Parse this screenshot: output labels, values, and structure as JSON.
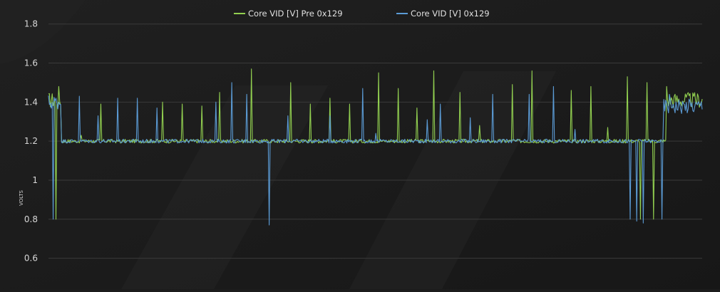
{
  "chart_data": {
    "type": "line",
    "title": "",
    "xlabel": "",
    "ylabel": "VOLTS",
    "ylim": [
      0.5,
      1.85
    ],
    "yticks": [
      {
        "value": 1.8,
        "label": "1.8"
      },
      {
        "value": 1.6,
        "label": "1.6"
      },
      {
        "value": 1.4,
        "label": "1.4"
      },
      {
        "value": 1.2,
        "label": "1.2"
      },
      {
        "value": 1.0,
        "label": "1"
      },
      {
        "value": 0.8,
        "label": "0.8"
      },
      {
        "value": 0.6,
        "label": "0.6"
      }
    ],
    "grid": true,
    "legend": "top-center",
    "n_samples": 700,
    "series": [
      {
        "name": "Core VID [V] Pre 0x129",
        "color": "#92d050",
        "baseline": 1.2,
        "noise": 0.01,
        "start_segment": {
          "end": 0.02,
          "value": 1.41,
          "noise": 0.04
        },
        "end_segment": {
          "start": 0.945,
          "value": 1.41,
          "noise": 0.04
        },
        "spikes": [
          {
            "x": 0.012,
            "y": 0.8
          },
          {
            "x": 0.016,
            "y": 1.48
          },
          {
            "x": 0.05,
            "y": 1.23
          },
          {
            "x": 0.08,
            "y": 1.39
          },
          {
            "x": 0.11,
            "y": 1.19
          },
          {
            "x": 0.175,
            "y": 1.4
          },
          {
            "x": 0.205,
            "y": 1.39
          },
          {
            "x": 0.235,
            "y": 1.38
          },
          {
            "x": 0.262,
            "y": 1.45
          },
          {
            "x": 0.31,
            "y": 1.57
          },
          {
            "x": 0.37,
            "y": 1.5
          },
          {
            "x": 0.4,
            "y": 1.39
          },
          {
            "x": 0.43,
            "y": 1.42
          },
          {
            "x": 0.46,
            "y": 1.39
          },
          {
            "x": 0.505,
            "y": 1.55
          },
          {
            "x": 0.535,
            "y": 1.47
          },
          {
            "x": 0.563,
            "y": 1.37
          },
          {
            "x": 0.59,
            "y": 1.56
          },
          {
            "x": 0.63,
            "y": 1.45
          },
          {
            "x": 0.66,
            "y": 1.28
          },
          {
            "x": 0.71,
            "y": 1.49
          },
          {
            "x": 0.74,
            "y": 1.56
          },
          {
            "x": 0.8,
            "y": 1.46
          },
          {
            "x": 0.83,
            "y": 1.48
          },
          {
            "x": 0.855,
            "y": 1.27
          },
          {
            "x": 0.885,
            "y": 1.53
          },
          {
            "x": 0.905,
            "y": 0.8
          },
          {
            "x": 0.915,
            "y": 1.5
          },
          {
            "x": 0.925,
            "y": 0.8
          },
          {
            "x": 0.945,
            "y": 1.48
          }
        ]
      },
      {
        "name": "Core VID [V] 0x129",
        "color": "#5b9bd5",
        "baseline": 1.2,
        "noise": 0.01,
        "start_segment": {
          "end": 0.02,
          "value": 1.4,
          "noise": 0.04
        },
        "end_segment": {
          "start": 0.94,
          "value": 1.38,
          "noise": 0.04
        },
        "spikes": [
          {
            "x": 0.007,
            "y": 0.8
          },
          {
            "x": 0.047,
            "y": 1.43
          },
          {
            "x": 0.076,
            "y": 1.33
          },
          {
            "x": 0.106,
            "y": 1.42
          },
          {
            "x": 0.136,
            "y": 1.42
          },
          {
            "x": 0.166,
            "y": 1.37
          },
          {
            "x": 0.256,
            "y": 1.4
          },
          {
            "x": 0.28,
            "y": 1.5
          },
          {
            "x": 0.303,
            "y": 1.44
          },
          {
            "x": 0.338,
            "y": 0.77
          },
          {
            "x": 0.366,
            "y": 1.33
          },
          {
            "x": 0.43,
            "y": 1.33
          },
          {
            "x": 0.48,
            "y": 1.47
          },
          {
            "x": 0.5,
            "y": 1.24
          },
          {
            "x": 0.58,
            "y": 1.31
          },
          {
            "x": 0.6,
            "y": 1.39
          },
          {
            "x": 0.645,
            "y": 1.32
          },
          {
            "x": 0.68,
            "y": 1.44
          },
          {
            "x": 0.735,
            "y": 1.44
          },
          {
            "x": 0.772,
            "y": 1.48
          },
          {
            "x": 0.805,
            "y": 1.26
          },
          {
            "x": 0.89,
            "y": 0.8
          },
          {
            "x": 0.9,
            "y": 0.79
          },
          {
            "x": 0.91,
            "y": 0.78
          },
          {
            "x": 0.938,
            "y": 0.8
          },
          {
            "x": 0.95,
            "y": 1.44
          },
          {
            "x": 0.955,
            "y": 1.39
          }
        ]
      }
    ]
  }
}
